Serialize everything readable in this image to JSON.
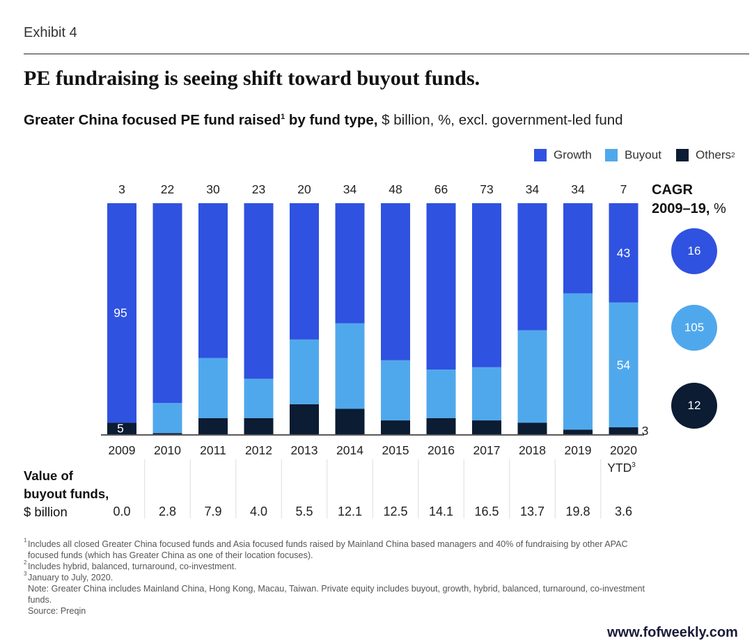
{
  "exhibit": "Exhibit 4",
  "headline": "PE fundraising is seeing shift toward buyout funds.",
  "subtitle": {
    "bold": "Greater China focused PE fund raised",
    "bold_sup": "1",
    "bold_tail": " by fund type,",
    "rest": " $ billion, %, excl. government-led fund"
  },
  "legend": [
    {
      "label": "Growth",
      "sup": "",
      "color": "#2f52e0"
    },
    {
      "label": "Buyout",
      "sup": "",
      "color": "#50a8ec"
    },
    {
      "label": "Others",
      "sup": "2",
      "color": "#0b1c33"
    }
  ],
  "colors": {
    "growth": "#2f52e0",
    "buyout": "#50a8ec",
    "others": "#0b1c33",
    "axis": "#222222",
    "grid": "#dddddd"
  },
  "chart_data": {
    "type": "bar",
    "stacked": "percent",
    "title": "Greater China focused PE fund raised by fund type, $ billion, %, excl. government-led fund",
    "categories": [
      "2009",
      "2010",
      "2011",
      "2012",
      "2013",
      "2014",
      "2015",
      "2016",
      "2017",
      "2018",
      "2019",
      "2020"
    ],
    "category_sublabels": [
      "",
      "",
      "",
      "",
      "",
      "",
      "",
      "",
      "",
      "",
      "",
      "YTD"
    ],
    "category_sublabel_sups": [
      "",
      "",
      "",
      "",
      "",
      "",
      "",
      "",
      "",
      "",
      "",
      "3"
    ],
    "totals": [
      3,
      22,
      30,
      23,
      20,
      34,
      48,
      66,
      73,
      34,
      34,
      7
    ],
    "series": [
      {
        "name": "Others",
        "values": [
          5,
          0.5,
          7,
          7,
          13,
          11,
          6,
          7,
          6,
          5,
          2,
          3
        ]
      },
      {
        "name": "Buyout",
        "values": [
          0,
          13,
          26,
          17,
          28,
          37,
          26,
          21,
          23,
          40,
          59,
          54
        ]
      },
      {
        "name": "Growth",
        "values": [
          95,
          86.5,
          67,
          76,
          59,
          52,
          68,
          72,
          71,
          55,
          39,
          43
        ]
      }
    ],
    "data_labels": [
      {
        "category": "2009",
        "series": "Growth",
        "text": "95"
      },
      {
        "category": "2009",
        "series": "Others",
        "text": "5"
      },
      {
        "category": "2020",
        "series": "Growth",
        "text": "43"
      },
      {
        "category": "2020",
        "series": "Buyout",
        "text": "54"
      },
      {
        "category": "2020",
        "series": "Others",
        "text": "3"
      }
    ],
    "ylim": [
      0,
      100
    ],
    "xlabel": "",
    "ylabel": ""
  },
  "cagr": {
    "title": "CAGR",
    "period": "2009–19,",
    "unit": " %",
    "values": [
      {
        "series": "Growth",
        "value": "16"
      },
      {
        "series": "Buyout",
        "value": "105"
      },
      {
        "series": "Others",
        "value": "12"
      }
    ]
  },
  "buyout_value": {
    "label_line1": "Value of",
    "label_line2": "buyout funds,",
    "label_line3": "$ billion",
    "values": [
      "0.0",
      "2.8",
      "7.9",
      "4.0",
      "5.5",
      "12.1",
      "12.5",
      "14.1",
      "16.5",
      "13.7",
      "19.8",
      "3.6"
    ]
  },
  "footnotes": {
    "fn1_sup": "1",
    "fn1": "Includes all closed Greater China focused funds and Asia focused funds raised by Mainland China based managers and 40% of fundraising by other APAC",
    "fn1_cont": "focused funds (which has Greater China as one of their location focuses).",
    "fn2_sup": "2",
    "fn2": "Includes hybrid, balanced, turnaround, co-investment.",
    "fn3_sup": "3",
    "fn3": "January to July, 2020.",
    "note": "Note: Greater China includes Mainland China, Hong Kong, Macau, Taiwan. Private equity includes buyout, growth, hybrid, balanced, turnaround, co-investment",
    "note_cont": "funds.",
    "source": "Source: Preqin"
  },
  "watermark": "www.fofweekly.com"
}
